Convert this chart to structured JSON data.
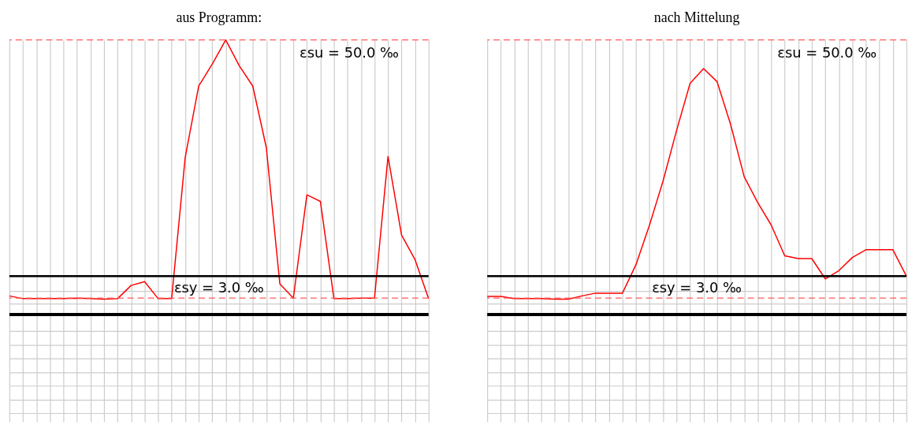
{
  "chart_data": [
    {
      "type": "line",
      "title": "aus Programm:",
      "categories": [
        null,
        null,
        null,
        null,
        null,
        null,
        null,
        null,
        null,
        null,
        null,
        null,
        null,
        null,
        null,
        null,
        null,
        null,
        null,
        null,
        null,
        null,
        null,
        null,
        null,
        null,
        null,
        null,
        null,
        null,
        null,
        null
      ],
      "series": [
        {
          "color": "#ff0000",
          "values": [
            3.4,
            2.9,
            2.9,
            2.9,
            2.9,
            3.0,
            2.9,
            2.8,
            2.9,
            5.3,
            6.0,
            2.9,
            2.9,
            28.6,
            41.6,
            45.6,
            50.0,
            45.3,
            41.6,
            30.4,
            5.6,
            3.0,
            21.8,
            20.6,
            2.9,
            2.9,
            3.0,
            3.0,
            28.8,
            14.5,
            10.0,
            2.9
          ]
        }
      ],
      "ylim": [
        -19.5,
        50
      ],
      "yticks": [
        {
          "value": 7.0,
          "label": null
        },
        {
          "value": 4.3,
          "label": null
        },
        {
          "value": 2.0,
          "label": null
        },
        {
          "value": -3.0,
          "label": null
        },
        {
          "value": -5.5,
          "label": null
        },
        {
          "value": -8.0,
          "label": null
        },
        {
          "value": -10.5,
          "label": null
        },
        {
          "value": -13.0,
          "label": null
        },
        {
          "value": -15.5,
          "label": null
        },
        {
          "value": -18.0,
          "label": null
        }
      ],
      "ref_lines": [
        {
          "axis": "y",
          "value": 50,
          "label": "εsu = 50.0 ‰",
          "color": "#ff5a5a",
          "line_style": "dashed"
        },
        {
          "axis": "y",
          "value": 3,
          "label": "εsy = 3.0 ‰",
          "color": "#ff5a5a",
          "line_style": "dashed"
        },
        {
          "axis": "y",
          "value": 7.0,
          "label": null,
          "color": "#000000",
          "line_style": "solid"
        },
        {
          "axis": "y",
          "value": 0,
          "label": null,
          "color": "#000000",
          "line_style": "solid"
        }
      ],
      "grid": true,
      "tick_labels": false,
      "marker": "none",
      "line_style": "solid"
    },
    {
      "type": "line",
      "title": "nach Mittelung",
      "categories": [
        null,
        null,
        null,
        null,
        null,
        null,
        null,
        null,
        null,
        null,
        null,
        null,
        null,
        null,
        null,
        null,
        null,
        null,
        null,
        null,
        null,
        null,
        null,
        null,
        null,
        null,
        null,
        null,
        null,
        null,
        null,
        null
      ],
      "series": [
        {
          "color": "#ff0000",
          "values": [
            3.3,
            3.3,
            2.9,
            2.9,
            2.9,
            2.8,
            2.8,
            3.4,
            3.9,
            3.9,
            3.9,
            9.1,
            16.3,
            24.3,
            33.5,
            42.1,
            44.8,
            42.4,
            34.6,
            25.1,
            20.4,
            16.3,
            10.7,
            10.2,
            10.2,
            6.5,
            8.0,
            10.4,
            11.8,
            11.8,
            11.8,
            7.0
          ]
        }
      ],
      "ylim": [
        -19.5,
        50
      ],
      "yticks": [
        {
          "value": 7.0,
          "label": null
        },
        {
          "value": 4.3,
          "label": null
        },
        {
          "value": 2.0,
          "label": null
        },
        {
          "value": -3.0,
          "label": null
        },
        {
          "value": -5.5,
          "label": null
        },
        {
          "value": -8.0,
          "label": null
        },
        {
          "value": -10.5,
          "label": null
        },
        {
          "value": -13.0,
          "label": null
        },
        {
          "value": -15.5,
          "label": null
        },
        {
          "value": -18.0,
          "label": null
        }
      ],
      "ref_lines": [
        {
          "axis": "y",
          "value": 50,
          "label": "εsu = 50.0 ‰",
          "color": "#ff5a5a",
          "line_style": "dashed"
        },
        {
          "axis": "y",
          "value": 3,
          "label": "εsy = 3.0 ‰",
          "color": "#ff5a5a",
          "line_style": "dashed"
        },
        {
          "axis": "y",
          "value": 7.0,
          "label": null,
          "color": "#000000",
          "line_style": "solid"
        },
        {
          "axis": "y",
          "value": 0,
          "label": null,
          "color": "#000000",
          "line_style": "solid"
        }
      ],
      "grid": true,
      "tick_labels": false,
      "marker": "none",
      "line_style": "solid"
    }
  ]
}
